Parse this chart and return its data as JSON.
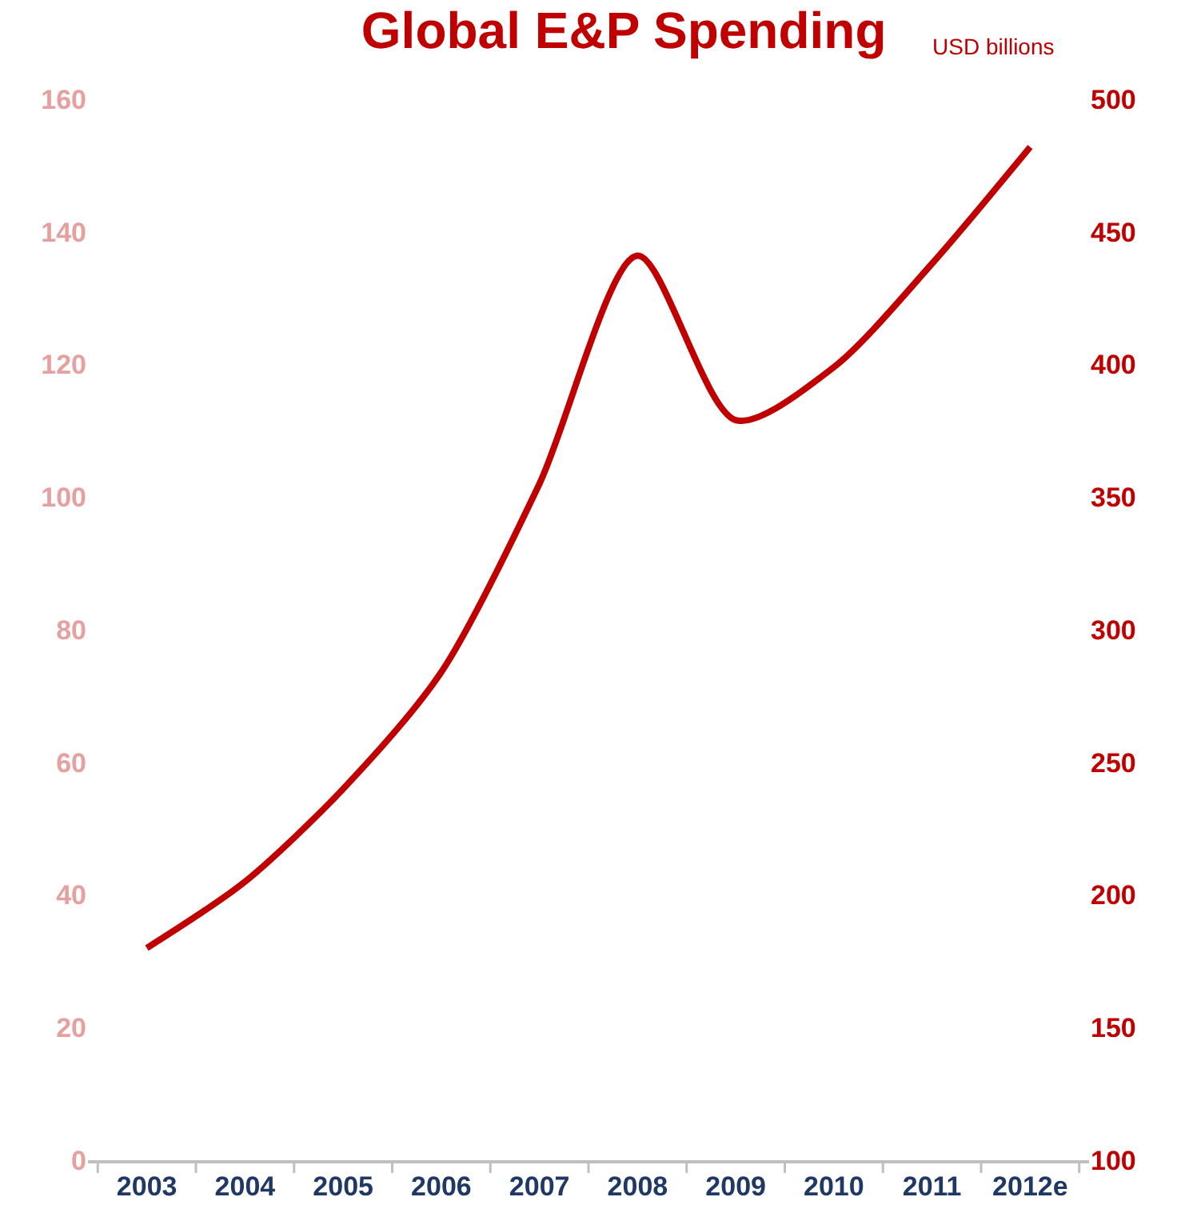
{
  "chart_data": {
    "type": "line",
    "title": "Global E&P Spending",
    "subtitle": "USD billions",
    "categories": [
      "2003",
      "2004",
      "2005",
      "2006",
      "2007",
      "2008",
      "2009",
      "2010",
      "2011",
      "2012e"
    ],
    "series": [
      {
        "color": "#c00000",
        "axis": "y2",
        "values": [
          180,
          205,
          240,
          284,
          355,
          441,
          379,
          399,
          438,
          482
        ]
      }
    ],
    "ylim": [
      0,
      160
    ],
    "yticks": [
      0,
      20,
      40,
      60,
      80,
      100,
      120,
      140,
      160
    ],
    "y2lim": [
      100,
      500
    ],
    "y2ticks": [
      100,
      150,
      200,
      250,
      300,
      350,
      400,
      450,
      500
    ],
    "marker": "none",
    "line_style": "solid"
  }
}
